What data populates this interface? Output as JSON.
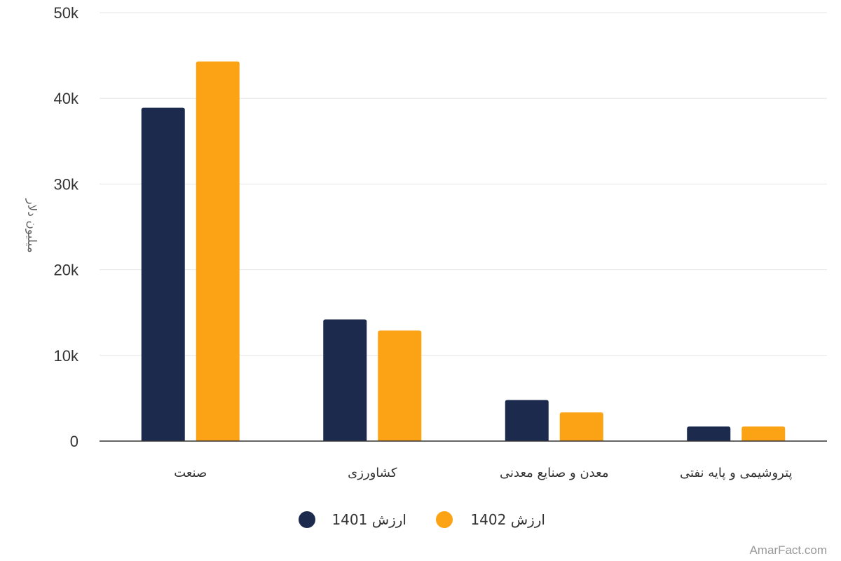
{
  "chart_data": {
    "type": "bar",
    "title": "",
    "xlabel": "",
    "ylabel": "میلیون دلار",
    "ylim": [
      0,
      50000
    ],
    "yticks": [
      0,
      10000,
      20000,
      30000,
      40000,
      50000
    ],
    "ytick_labels": [
      "0",
      "10k",
      "20k",
      "30k",
      "40k",
      "50k"
    ],
    "grid": true,
    "legend_position": "bottom-center",
    "categories": [
      "صنعت",
      "کشاورزی",
      "معدن و صنایع معدنی",
      "پتروشیمی و پایه نفتی"
    ],
    "series": [
      {
        "name": "ارزش 1401",
        "color": "#1b2a4d",
        "values": [
          38900,
          14200,
          4800,
          1700
        ]
      },
      {
        "name": "ارزش 1402",
        "color": "#fba315",
        "values": [
          44300,
          12900,
          3350,
          1700
        ]
      }
    ]
  },
  "credit": "AmarFact.com"
}
